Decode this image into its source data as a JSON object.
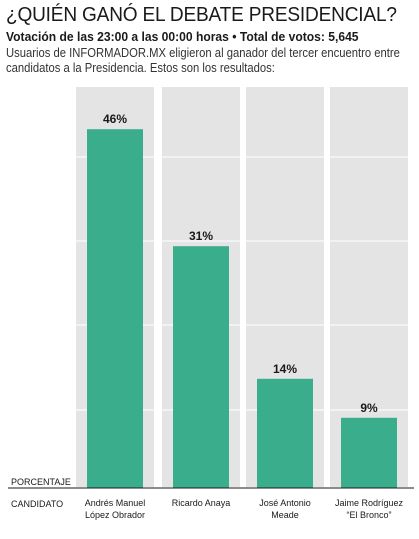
{
  "header": {
    "title": "¿QUIÉN GANÓ EL DEBATE PRESIDENCIAL?",
    "subtitle": "Votación de las 23:00 a las 00:00 horas • Total de votos: 5,645",
    "description": "Usuarios de INFORMADOR.MX eligieron al ganador del tercer encuentro entre candidatos a la Presidencia. Estos son los resultados:"
  },
  "colors": {
    "bar": "#3aad8c",
    "panel": "#e4e4e4",
    "grid": "#ffffff"
  },
  "chart_data": {
    "type": "bar",
    "title": "¿QUIÉN GANÓ EL DEBATE PRESIDENCIAL?",
    "ylabel": "PORCENTAJE",
    "xlabel": "CANDIDATO",
    "ylim": [
      0,
      50
    ],
    "grid": true,
    "categories": [
      [
        "Andrés Manuel",
        "López Obrador"
      ],
      [
        "Ricardo Anaya"
      ],
      [
        "José Antonio",
        "Meade"
      ],
      [
        "Jaime Rodríguez",
        "“El Bronco”"
      ]
    ],
    "values": [
      46,
      31,
      14,
      9
    ],
    "data_labels": [
      "46%",
      "31%",
      "14%",
      "9%"
    ]
  }
}
